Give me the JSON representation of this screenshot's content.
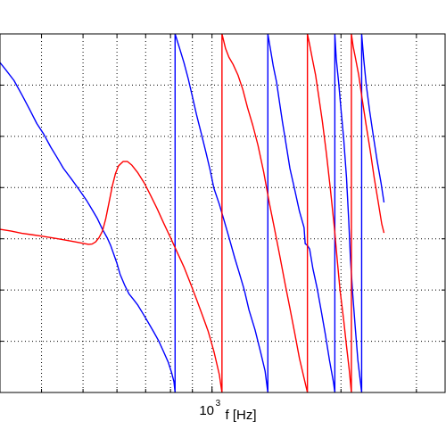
{
  "chart_data": {
    "type": "line",
    "title": "",
    "xlabel": "f [Hz]",
    "ylabel": "",
    "x_scale": "log",
    "xlim": [
      320,
      3500
    ],
    "ylim": [
      0,
      1
    ],
    "x_tick_labels": [
      {
        "base": "10",
        "exp": "3",
        "value": 1000
      }
    ],
    "grid": true,
    "series": [
      {
        "color": "#0000ff",
        "points": [
          [
            320,
            0.92
          ],
          [
            330,
            0.9
          ],
          [
            345,
            0.87
          ],
          [
            360,
            0.83
          ],
          [
            375,
            0.79
          ],
          [
            390,
            0.75
          ],
          [
            405,
            0.72
          ],
          [
            420,
            0.685
          ],
          [
            435,
            0.655
          ],
          [
            450,
            0.625
          ],
          [
            470,
            0.595
          ],
          [
            490,
            0.565
          ],
          [
            510,
            0.535
          ],
          [
            525,
            0.51
          ],
          [
            540,
            0.485
          ],
          [
            555,
            0.455
          ],
          [
            570,
            0.43
          ],
          [
            580,
            0.41
          ],
          [
            590,
            0.385
          ],
          [
            600,
            0.36
          ],
          [
            610,
            0.33
          ],
          [
            625,
            0.3
          ],
          [
            640,
            0.275
          ],
          [
            655,
            0.26
          ],
          [
            670,
            0.245
          ],
          [
            690,
            0.22
          ],
          [
            710,
            0.195
          ],
          [
            730,
            0.17
          ],
          [
            750,
            0.145
          ],
          [
            770,
            0.115
          ],
          [
            790,
            0.085
          ],
          [
            805,
            0.055
          ],
          [
            815,
            0.03
          ],
          [
            820,
            0.0
          ],
          [
            820,
            1.0
          ],
          [
            840,
            0.96
          ],
          [
            860,
            0.92
          ],
          [
            880,
            0.875
          ],
          [
            900,
            0.825
          ],
          [
            920,
            0.775
          ],
          [
            945,
            0.72
          ],
          [
            970,
            0.665
          ],
          [
            990,
            0.62
          ],
          [
            1010,
            0.57
          ],
          [
            1040,
            0.525
          ],
          [
            1070,
            0.475
          ],
          [
            1100,
            0.425
          ],
          [
            1130,
            0.375
          ],
          [
            1160,
            0.33
          ],
          [
            1190,
            0.285
          ],
          [
            1220,
            0.23
          ],
          [
            1260,
            0.175
          ],
          [
            1300,
            0.11
          ],
          [
            1330,
            0.06
          ],
          [
            1350,
            0.0
          ],
          [
            1350,
            1.0
          ],
          [
            1370,
            0.955
          ],
          [
            1390,
            0.91
          ],
          [
            1415,
            0.865
          ],
          [
            1435,
            0.815
          ],
          [
            1460,
            0.755
          ],
          [
            1490,
            0.69
          ],
          [
            1520,
            0.625
          ],
          [
            1560,
            0.565
          ],
          [
            1600,
            0.505
          ],
          [
            1640,
            0.46
          ],
          [
            1650,
            0.415
          ],
          [
            1670,
            0.41
          ],
          [
            1690,
            0.4
          ],
          [
            1720,
            0.345
          ],
          [
            1760,
            0.29
          ],
          [
            1800,
            0.225
          ],
          [
            1840,
            0.16
          ],
          [
            1880,
            0.09
          ],
          [
            1920,
            0.03
          ],
          [
            1935,
            0.0
          ],
          [
            1935,
            1.0
          ],
          [
            1950,
            0.93
          ],
          [
            1975,
            0.865
          ],
          [
            2000,
            0.79
          ],
          [
            2030,
            0.705
          ],
          [
            2060,
            0.6
          ],
          [
            2085,
            0.48
          ],
          [
            2105,
            0.37
          ],
          [
            2130,
            0.275
          ],
          [
            2160,
            0.18
          ],
          [
            2190,
            0.09
          ],
          [
            2220,
            0.03
          ],
          [
            2235,
            0.0
          ],
          [
            2235,
            1.0
          ],
          [
            2260,
            0.93
          ],
          [
            2290,
            0.86
          ],
          [
            2330,
            0.79
          ],
          [
            2380,
            0.715
          ],
          [
            2430,
            0.645
          ],
          [
            2480,
            0.585
          ],
          [
            2520,
            0.53
          ]
        ]
      },
      {
        "color": "#ff0000",
        "points": [
          [
            320,
            0.455
          ],
          [
            340,
            0.45
          ],
          [
            360,
            0.444
          ],
          [
            380,
            0.44
          ],
          [
            400,
            0.436
          ],
          [
            420,
            0.432
          ],
          [
            440,
            0.428
          ],
          [
            460,
            0.424
          ],
          [
            480,
            0.42
          ],
          [
            500,
            0.416
          ],
          [
            515,
            0.413
          ],
          [
            525,
            0.414
          ],
          [
            535,
            0.42
          ],
          [
            545,
            0.432
          ],
          [
            555,
            0.45
          ],
          [
            565,
            0.485
          ],
          [
            575,
            0.53
          ],
          [
            585,
            0.575
          ],
          [
            595,
            0.61
          ],
          [
            605,
            0.632
          ],
          [
            620,
            0.644
          ],
          [
            635,
            0.644
          ],
          [
            650,
            0.634
          ],
          [
            670,
            0.614
          ],
          [
            695,
            0.584
          ],
          [
            720,
            0.548
          ],
          [
            745,
            0.512
          ],
          [
            770,
            0.474
          ],
          [
            800,
            0.432
          ],
          [
            830,
            0.39
          ],
          [
            860,
            0.35
          ],
          [
            890,
            0.305
          ],
          [
            920,
            0.26
          ],
          [
            950,
            0.215
          ],
          [
            980,
            0.17
          ],
          [
            1010,
            0.115
          ],
          [
            1040,
            0.05
          ],
          [
            1055,
            0.0
          ],
          [
            1055,
            1.0
          ],
          [
            1075,
            0.96
          ],
          [
            1095,
            0.935
          ],
          [
            1120,
            0.915
          ],
          [
            1150,
            0.885
          ],
          [
            1180,
            0.845
          ],
          [
            1210,
            0.795
          ],
          [
            1245,
            0.745
          ],
          [
            1280,
            0.69
          ],
          [
            1320,
            0.615
          ],
          [
            1360,
            0.53
          ],
          [
            1400,
            0.455
          ],
          [
            1440,
            0.38
          ],
          [
            1480,
            0.305
          ],
          [
            1520,
            0.235
          ],
          [
            1560,
            0.165
          ],
          [
            1600,
            0.095
          ],
          [
            1640,
            0.04
          ],
          [
            1670,
            0.0
          ],
          [
            1670,
            1.0
          ],
          [
            1690,
            0.97
          ],
          [
            1715,
            0.93
          ],
          [
            1745,
            0.885
          ],
          [
            1775,
            0.825
          ],
          [
            1810,
            0.755
          ],
          [
            1850,
            0.665
          ],
          [
            1890,
            0.565
          ],
          [
            1930,
            0.46
          ],
          [
            1960,
            0.37
          ],
          [
            1990,
            0.285
          ],
          [
            2030,
            0.2
          ],
          [
            2060,
            0.13
          ],
          [
            2090,
            0.065
          ],
          [
            2115,
            0.0
          ],
          [
            2115,
            1.0
          ],
          [
            2135,
            0.965
          ],
          [
            2160,
            0.935
          ],
          [
            2200,
            0.885
          ],
          [
            2240,
            0.82
          ],
          [
            2290,
            0.745
          ],
          [
            2340,
            0.675
          ],
          [
            2390,
            0.6
          ],
          [
            2440,
            0.535
          ],
          [
            2490,
            0.47
          ],
          [
            2520,
            0.445
          ]
        ]
      }
    ]
  }
}
